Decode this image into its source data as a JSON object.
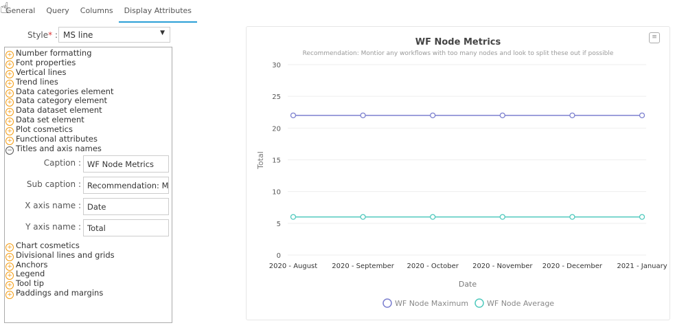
{
  "tabs": [
    "General",
    "Query",
    "Columns",
    "Display Attributes"
  ],
  "style": {
    "label": "Style",
    "required": "*",
    "colon": " :",
    "value": "MS line"
  },
  "tree_top": [
    "Number formatting",
    "Font properties",
    "Vertical lines",
    "Trend lines",
    "Data categories element",
    "Data category element",
    "Data dataset element",
    "Data set element",
    "Plot cosmetics",
    "Functional attributes"
  ],
  "expanded": {
    "label": "Titles and axis names",
    "fields": [
      {
        "label": "Caption :",
        "value": "WF Node Metrics"
      },
      {
        "label": "Sub caption :",
        "value": "Recommendation: Montior any workflows with too many nodes and look to split these out if possible"
      },
      {
        "label": "X axis name :",
        "value": "Date"
      },
      {
        "label": "Y axis name :",
        "value": "Total"
      }
    ]
  },
  "tree_bottom": [
    "Chart cosmetics",
    "Divisional lines and grids",
    "Anchors",
    "Legend",
    "Tool tip",
    "Paddings and margins"
  ],
  "chart_data": {
    "type": "line",
    "title": "WF Node Metrics",
    "subtitle": "Recommendation: Montior any workflows with too many nodes and look to split these out if possible",
    "xlabel": "Date",
    "ylabel": "Total",
    "categories": [
      "2020 - August",
      "2020 - September",
      "2020 - October",
      "2020 - November",
      "2020 - December",
      "2021 - January"
    ],
    "ylim": [
      0,
      30
    ],
    "yticks": [
      0,
      5,
      10,
      15,
      20,
      25,
      30
    ],
    "grid": true,
    "legend": "bottom",
    "series": [
      {
        "name": "WF Node Maximum",
        "values": [
          22,
          22,
          22,
          22,
          22,
          22
        ],
        "color": "#7b7fcf"
      },
      {
        "name": "WF Node Average",
        "values": [
          6,
          6,
          6,
          6,
          6,
          6
        ],
        "color": "#4fc9bd"
      }
    ]
  }
}
